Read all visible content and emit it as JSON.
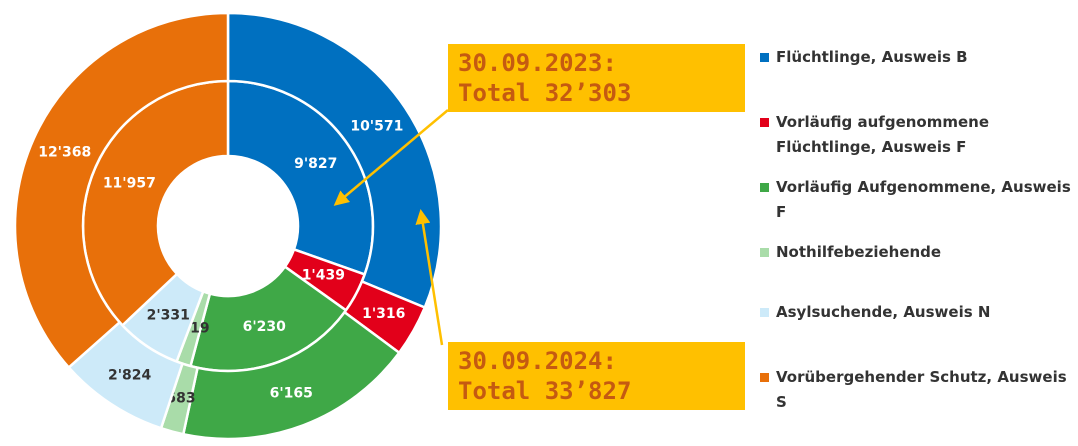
{
  "chart_data": {
    "type": "donut",
    "categories": [
      "Flüchtlinge, Ausweis B",
      "Vorläufig aufgenommene Flüchtlinge, Ausweis F",
      "Vorläufig Aufgenommene, Ausweis F",
      "Nothilfebeziehende",
      "Asylsuchende, Ausweis N",
      "Vorübergehender Schutz, Ausweis S"
    ],
    "colors": [
      "#0070c0",
      "#e2001a",
      "#3fa847",
      "#a9dca9",
      "#cdeaf9",
      "#e8700a"
    ],
    "series": [
      {
        "values": [
          9827,
          1439,
          6230,
          519,
          2331,
          11957
        ],
        "value_labels": [
          "9'827",
          "1'439",
          "6'230",
          "519",
          "2'331",
          "11'957"
        ]
      },
      {
        "values": [
          10571,
          1316,
          6165,
          583,
          2824,
          12368
        ],
        "value_labels": [
          "10'571",
          "1'316",
          "6'165",
          "583",
          "2'824",
          "12'368"
        ]
      }
    ],
    "annotations": [
      {
        "lines": [
          "30.09.2023:",
          "Total 32’303"
        ]
      },
      {
        "lines": [
          "30.09.2024:",
          "Total 33’827"
        ]
      }
    ],
    "legend": "right"
  }
}
